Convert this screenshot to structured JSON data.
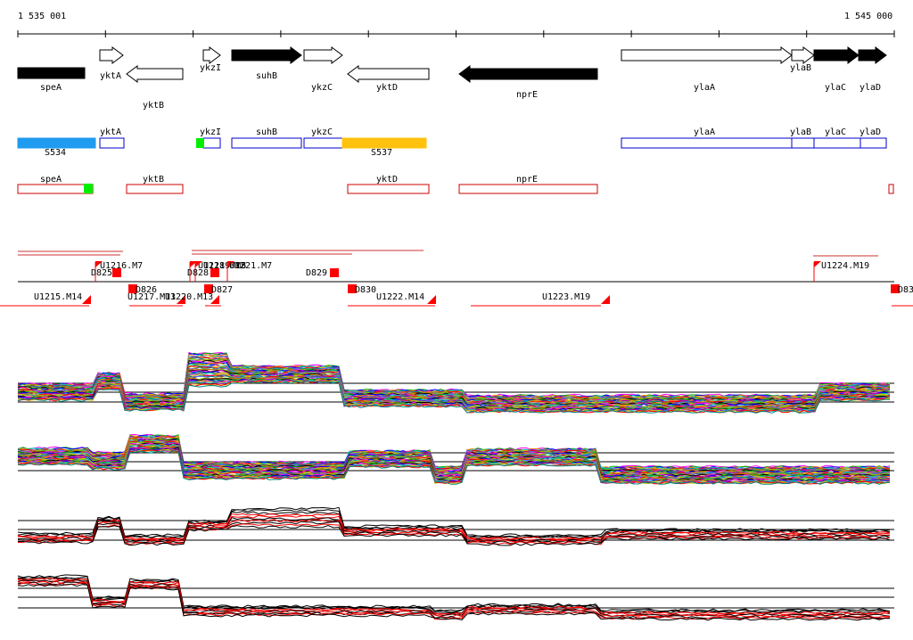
{
  "coords": {
    "start": "1 535 001",
    "end": "1 545 000"
  },
  "genes": [
    {
      "name": "speA",
      "strand": "-",
      "fill": "black"
    },
    {
      "name": "yktA",
      "strand": "+",
      "fill": "white"
    },
    {
      "name": "yktB",
      "strand": "-",
      "fill": "white"
    },
    {
      "name": "ykzI",
      "strand": "+",
      "fill": "white"
    },
    {
      "name": "suhB",
      "strand": "+",
      "fill": "black"
    },
    {
      "name": "ykzC",
      "strand": "+",
      "fill": "white"
    },
    {
      "name": "yktD",
      "strand": "-",
      "fill": "white"
    },
    {
      "name": "nprE",
      "strand": "-",
      "fill": "black"
    },
    {
      "name": "ylaA",
      "strand": "+",
      "fill": "white"
    },
    {
      "name": "ylaB",
      "strand": "+",
      "fill": "white"
    },
    {
      "name": "ylaC",
      "strand": "+",
      "fill": "black"
    },
    {
      "name": "ylaD",
      "strand": "+",
      "fill": "black"
    }
  ],
  "plus_boxes": [
    {
      "label": "S534",
      "color": "#1f9bf0"
    },
    {
      "label": "yktA",
      "color": "#0000cc"
    },
    {
      "label": "ykzI",
      "color": "#0000cc"
    },
    {
      "label": "suhB",
      "color": "#0000cc"
    },
    {
      "label": "ykzC",
      "color": "#0000cc"
    },
    {
      "label": "S537",
      "color": "#ffc20e"
    },
    {
      "label": "ylaA",
      "color": "#0000cc"
    },
    {
      "label": "ylaB",
      "color": "#0000cc"
    },
    {
      "label": "ylaC",
      "color": "#0000cc"
    },
    {
      "label": "ylaD",
      "color": "#0000cc"
    }
  ],
  "minus_boxes": [
    {
      "label": "speA",
      "color": "#cc0000"
    },
    {
      "label": "yktB",
      "color": "#cc0000"
    },
    {
      "label": "yktD",
      "color": "#cc0000"
    },
    {
      "label": "nprE",
      "color": "#cc0000"
    }
  ],
  "upshift_labels": [
    "U1216.M7",
    "U1218.M15",
    "U1219.M8",
    "U1221.M7",
    "U1224.M19"
  ],
  "downshift_labels": [
    "D825",
    "D828",
    "D829",
    "D826",
    "D827",
    "D830",
    "D83"
  ],
  "minus_segment_labels": [
    "U1215.M14",
    "U1217.M13",
    "U1220.M13",
    "U1222.M14",
    "U1223.M19"
  ],
  "colors": {
    "accent_red": "#ff0000",
    "gene_black": "#000000",
    "box_blue": "#0000cc",
    "box_red": "#cc0000",
    "green": "#00ee00"
  }
}
